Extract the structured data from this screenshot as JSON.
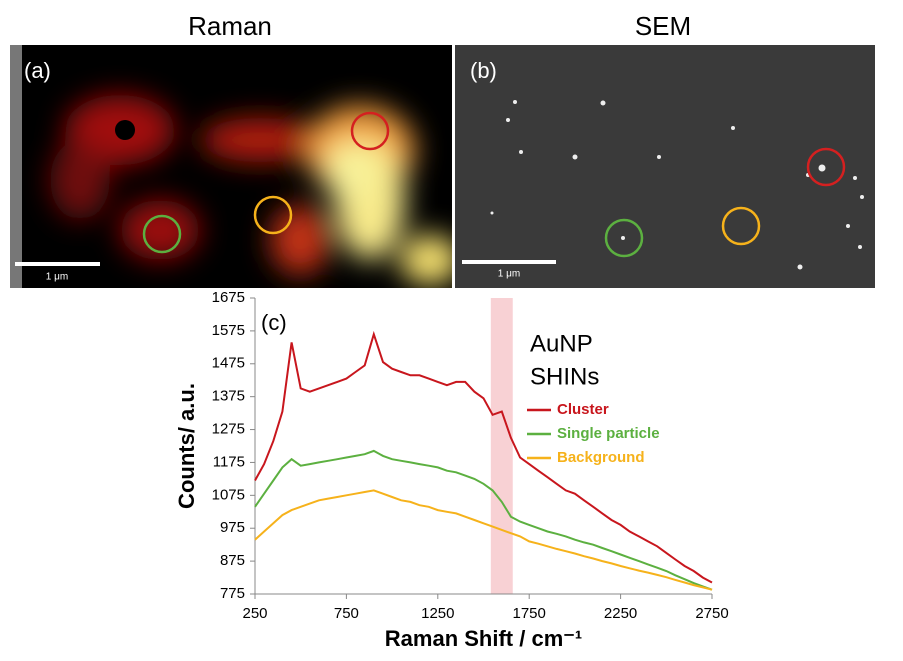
{
  "panels": [
    {
      "title": "Raman",
      "label": "(a)",
      "scale_bar": "1 μm"
    },
    {
      "title": "SEM",
      "label": "(b)",
      "scale_bar": "1 μm"
    }
  ],
  "chart_data": {
    "type": "line",
    "label": "(c)",
    "legend_title": [
      "AuNP",
      "SHINs"
    ],
    "xlabel": "Raman Shift / cm⁻¹",
    "ylabel": "Counts/ a.u.",
    "xlim": [
      250,
      2750
    ],
    "xticks": [
      250,
      750,
      1250,
      1750,
      2250,
      2750
    ],
    "ylim": [
      775,
      1675
    ],
    "yticks": [
      775,
      875,
      975,
      1075,
      1175,
      1275,
      1375,
      1475,
      1575,
      1675
    ],
    "highlight_band": [
      1540,
      1660
    ],
    "highlight_color": "#f6c1c5",
    "x": [
      250,
      300,
      350,
      400,
      450,
      500,
      550,
      600,
      650,
      700,
      750,
      800,
      850,
      900,
      950,
      1000,
      1050,
      1100,
      1150,
      1200,
      1250,
      1300,
      1350,
      1400,
      1450,
      1500,
      1550,
      1600,
      1650,
      1700,
      1750,
      1800,
      1850,
      1900,
      1950,
      2000,
      2050,
      2100,
      2150,
      2200,
      2250,
      2300,
      2350,
      2400,
      2450,
      2500,
      2550,
      2600,
      2650,
      2700,
      2750
    ],
    "series": [
      {
        "name": "Cluster",
        "color": "#c8161d",
        "values": [
          1120,
          1170,
          1240,
          1330,
          1540,
          1400,
          1390,
          1400,
          1410,
          1420,
          1430,
          1450,
          1470,
          1565,
          1480,
          1460,
          1450,
          1440,
          1440,
          1430,
          1420,
          1410,
          1420,
          1420,
          1390,
          1370,
          1320,
          1330,
          1250,
          1190,
          1170,
          1150,
          1130,
          1110,
          1090,
          1080,
          1060,
          1040,
          1020,
          1000,
          985,
          965,
          950,
          935,
          920,
          900,
          880,
          860,
          845,
          825,
          810
        ]
      },
      {
        "name": "Single particle",
        "color": "#5cb040",
        "values": [
          1040,
          1080,
          1120,
          1160,
          1185,
          1165,
          1170,
          1175,
          1180,
          1185,
          1190,
          1195,
          1200,
          1210,
          1195,
          1185,
          1180,
          1175,
          1170,
          1165,
          1160,
          1150,
          1145,
          1135,
          1125,
          1110,
          1090,
          1055,
          1010,
          995,
          985,
          975,
          965,
          958,
          950,
          940,
          932,
          925,
          915,
          905,
          895,
          885,
          875,
          865,
          855,
          845,
          832,
          820,
          808,
          798,
          788
        ]
      },
      {
        "name": "Background",
        "color": "#f6b21b",
        "values": [
          940,
          965,
          990,
          1015,
          1030,
          1040,
          1050,
          1060,
          1065,
          1070,
          1075,
          1080,
          1085,
          1090,
          1080,
          1070,
          1060,
          1055,
          1045,
          1040,
          1030,
          1025,
          1020,
          1010,
          1000,
          990,
          980,
          970,
          960,
          950,
          935,
          928,
          920,
          912,
          905,
          898,
          890,
          883,
          875,
          868,
          860,
          853,
          846,
          840,
          833,
          826,
          818,
          810,
          802,
          795,
          788
        ]
      }
    ]
  }
}
